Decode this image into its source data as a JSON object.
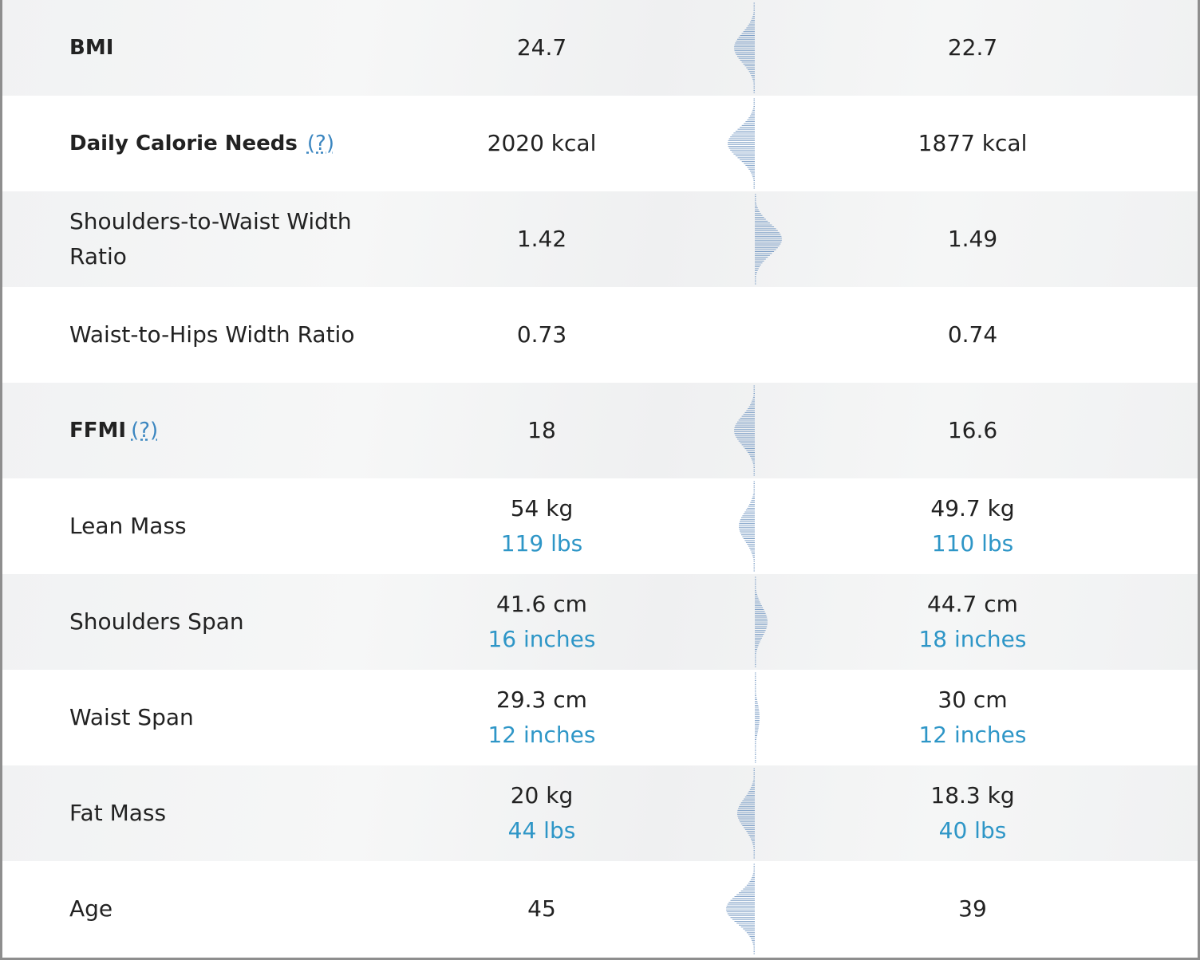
{
  "rows": [
    {
      "label": "BMI",
      "bold": true,
      "help": "",
      "left": {
        "main": "24.7",
        "sub": ""
      },
      "right": {
        "main": "22.7",
        "sub": ""
      },
      "dist": {
        "peak_offset": -12,
        "width": 26,
        "visible": true
      }
    },
    {
      "label": "Daily Calorie Needs",
      "bold": true,
      "help": "(?)",
      "left": {
        "main": "2020 kcal",
        "sub": ""
      },
      "right": {
        "main": "1877 kcal",
        "sub": ""
      },
      "dist": {
        "peak_offset": -18,
        "width": 34,
        "visible": true
      }
    },
    {
      "label": "Shoulders-to-Waist Width Ratio",
      "bold": false,
      "help": "",
      "left": {
        "main": "1.42",
        "sub": ""
      },
      "right": {
        "main": "1.49",
        "sub": ""
      },
      "dist": {
        "peak_offset": 18,
        "width": 34,
        "visible": true
      }
    },
    {
      "label": "Waist-to-Hips Width Ratio",
      "bold": false,
      "help": "",
      "left": {
        "main": "0.73",
        "sub": ""
      },
      "right": {
        "main": "0.74",
        "sub": ""
      },
      "dist": {
        "peak_offset": 0,
        "width": 0,
        "visible": false
      }
    },
    {
      "label": "FFMI",
      "bold": true,
      "help": "(?)",
      "left": {
        "main": "18",
        "sub": ""
      },
      "right": {
        "main": "16.6",
        "sub": ""
      },
      "dist": {
        "peak_offset": -12,
        "width": 26,
        "visible": true
      }
    },
    {
      "label": "Lean Mass",
      "bold": false,
      "help": "",
      "left": {
        "main": "54 kg",
        "sub": "119 lbs"
      },
      "right": {
        "main": "49.7 kg",
        "sub": "110 lbs"
      },
      "dist": {
        "peak_offset": -10,
        "width": 20,
        "visible": true
      }
    },
    {
      "label": "Shoulders Span",
      "bold": false,
      "help": "",
      "left": {
        "main": "41.6 cm",
        "sub": "16 inches"
      },
      "right": {
        "main": "44.7 cm",
        "sub": "18 inches"
      },
      "dist": {
        "peak_offset": 10,
        "width": 16,
        "visible": true
      }
    },
    {
      "label": "Waist Span",
      "bold": false,
      "help": "",
      "left": {
        "main": "29.3 cm",
        "sub": "12 inches"
      },
      "right": {
        "main": "30 cm",
        "sub": "12 inches"
      },
      "dist": {
        "peak_offset": 3,
        "width": 6,
        "visible": true
      }
    },
    {
      "label": "Fat Mass",
      "bold": false,
      "help": "",
      "left": {
        "main": "20 kg",
        "sub": "44 lbs"
      },
      "right": {
        "main": "18.3 kg",
        "sub": "40 lbs"
      },
      "dist": {
        "peak_offset": -12,
        "width": 22,
        "visible": true
      }
    },
    {
      "label": "Age",
      "bold": false,
      "help": "",
      "left": {
        "main": "45",
        "sub": ""
      },
      "right": {
        "main": "39",
        "sub": ""
      },
      "dist": {
        "peak_offset": -20,
        "width": 36,
        "visible": true
      }
    }
  ],
  "colors": {
    "accent": "#2e96c7",
    "help": "#3b86c0",
    "dist_line": "#7e9fc6",
    "text": "#222222"
  }
}
